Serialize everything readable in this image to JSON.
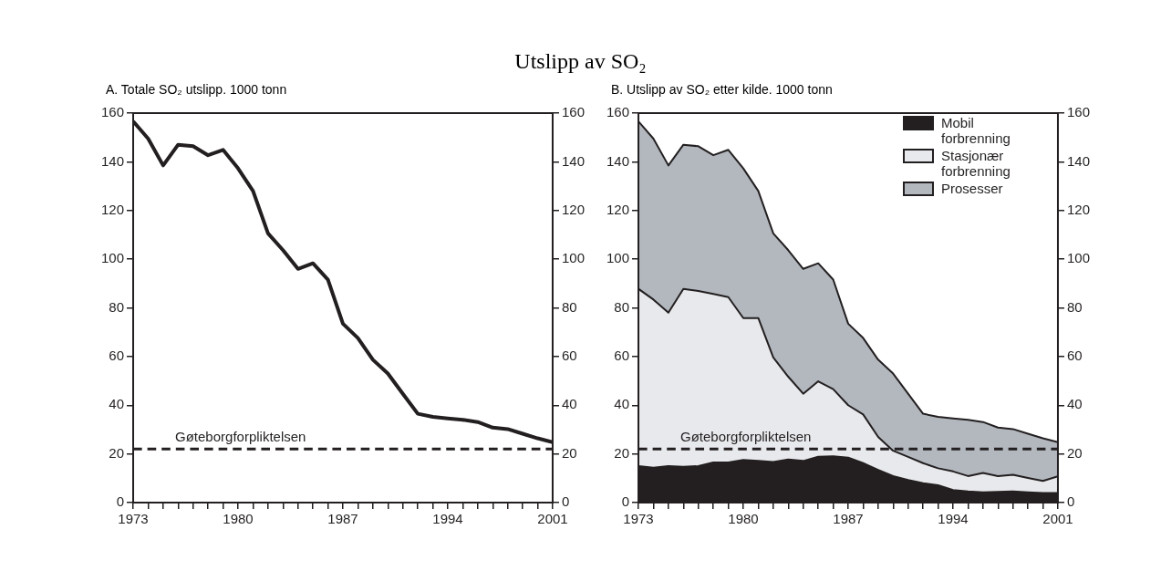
{
  "chart_data": [
    {
      "type": "line",
      "title": "Utslipp av SO₂",
      "subtitle": "A. Totale SO₂ utslipp. 1000 tonn",
      "x": [
        1973,
        1974,
        1975,
        1976,
        1977,
        1978,
        1979,
        1980,
        1981,
        1982,
        1983,
        1984,
        1985,
        1986,
        1987,
        1988,
        1989,
        1990,
        1991,
        1992,
        1993,
        1994,
        1995,
        1996,
        1997,
        1998,
        1999,
        2000,
        2001
      ],
      "series": [
        {
          "color": "#231f20",
          "values": [
            156.6,
            149.5,
            138.5,
            147,
            146.4,
            142.7,
            144.9,
            137.3,
            128,
            110.6,
            103.7,
            96,
            98.3,
            91.6,
            73.5,
            67.6,
            58.7,
            53,
            44.7,
            36.5,
            35.2,
            34.6,
            34,
            33.1,
            30.8,
            30.2,
            28.3,
            26.4,
            24.8
          ]
        }
      ],
      "xlim": [
        1973,
        2001
      ],
      "xticks": [
        1973,
        {
          "value": 1974,
          "label": null
        },
        {
          "value": 1975,
          "label": null
        },
        {
          "value": 1976,
          "label": null
        },
        {
          "value": 1977,
          "label": null
        },
        {
          "value": 1978,
          "label": null
        },
        {
          "value": 1979,
          "label": null
        },
        1980,
        {
          "value": 1981,
          "label": null
        },
        {
          "value": 1982,
          "label": null
        },
        {
          "value": 1983,
          "label": null
        },
        {
          "value": 1984,
          "label": null
        },
        {
          "value": 1985,
          "label": null
        },
        {
          "value": 1986,
          "label": null
        },
        1987,
        {
          "value": 1988,
          "label": null
        },
        {
          "value": 1989,
          "label": null
        },
        {
          "value": 1990,
          "label": null
        },
        {
          "value": 1991,
          "label": null
        },
        {
          "value": 1992,
          "label": null
        },
        {
          "value": 1993,
          "label": null
        },
        1994,
        {
          "value": 1995,
          "label": null
        },
        {
          "value": 1996,
          "label": null
        },
        {
          "value": 1997,
          "label": null
        },
        {
          "value": 1998,
          "label": null
        },
        {
          "value": 1999,
          "label": null
        },
        {
          "value": 2000,
          "label": null
        },
        2001
      ],
      "ylim": [
        0,
        160
      ],
      "yticks": [
        0,
        20,
        40,
        60,
        80,
        100,
        120,
        140,
        160
      ],
      "y2lim": [
        0,
        160
      ],
      "y2ticks": [
        0,
        20,
        40,
        60,
        80,
        100,
        120,
        140,
        160
      ],
      "ref_lines": [
        {
          "axis": "y",
          "value": 22,
          "label": "Gøteborgforpliktelsen",
          "color": "#231f20",
          "line_style": "dashed"
        }
      ],
      "grid": false,
      "legend": false,
      "line_style": "solid",
      "marker": "none"
    },
    {
      "type": "area",
      "subtitle": "B. Utslipp av SO₂ etter kilde. 1000 tonn",
      "stacked": true,
      "x": [
        1973,
        1974,
        1975,
        1976,
        1977,
        1978,
        1979,
        1980,
        1981,
        1982,
        1983,
        1984,
        1985,
        1986,
        1987,
        1988,
        1989,
        1990,
        1991,
        1992,
        1993,
        1994,
        1995,
        1996,
        1997,
        1998,
        1999,
        2000,
        2001
      ],
      "series": [
        {
          "name": "Mobil forbrenning",
          "color": "#231f20",
          "values": [
            15,
            14.3,
            15,
            14.7,
            15,
            16.5,
            16.5,
            17.5,
            17.1,
            16.7,
            17.7,
            17.1,
            18.8,
            19,
            18.5,
            16.2,
            13.4,
            10.9,
            9.3,
            8,
            7.1,
            5.2,
            4.6,
            4.2,
            4.4,
            4.6,
            4.2,
            3.9,
            3.9
          ]
        },
        {
          "name": "Stasjonær forbrenning",
          "color": "#e8e9ec",
          "values": [
            72.8,
            69.1,
            63,
            73.1,
            71.9,
            69.2,
            67.9,
            58.3,
            58.7,
            42.9,
            34,
            27.6,
            31,
            27.6,
            21.5,
            20,
            13.6,
            10.4,
            9.5,
            8.2,
            7,
            7.6,
            6.3,
            8,
            6.5,
            6.8,
            5.9,
            5,
            6.9
          ]
        },
        {
          "name": "Prosesser",
          "color": "#b3b8bf",
          "values": [
            68.8,
            66.1,
            60.5,
            59.2,
            59.5,
            57,
            60.5,
            61.5,
            52.2,
            51,
            52,
            51.3,
            48.5,
            45,
            33.5,
            31.4,
            31.7,
            31.7,
            25.9,
            20.3,
            21.1,
            21.8,
            23.1,
            20.9,
            19.9,
            18.8,
            18.2,
            17.5,
            14
          ]
        }
      ],
      "xlim": [
        1973,
        2001
      ],
      "xticks": [
        1973,
        {
          "value": 1974,
          "label": null
        },
        {
          "value": 1975,
          "label": null
        },
        {
          "value": 1976,
          "label": null
        },
        {
          "value": 1977,
          "label": null
        },
        {
          "value": 1978,
          "label": null
        },
        {
          "value": 1979,
          "label": null
        },
        1980,
        {
          "value": 1981,
          "label": null
        },
        {
          "value": 1982,
          "label": null
        },
        {
          "value": 1983,
          "label": null
        },
        {
          "value": 1984,
          "label": null
        },
        {
          "value": 1985,
          "label": null
        },
        {
          "value": 1986,
          "label": null
        },
        1987,
        {
          "value": 1988,
          "label": null
        },
        {
          "value": 1989,
          "label": null
        },
        {
          "value": 1990,
          "label": null
        },
        {
          "value": 1991,
          "label": null
        },
        {
          "value": 1992,
          "label": null
        },
        {
          "value": 1993,
          "label": null
        },
        1994,
        {
          "value": 1995,
          "label": null
        },
        {
          "value": 1996,
          "label": null
        },
        {
          "value": 1997,
          "label": null
        },
        {
          "value": 1998,
          "label": null
        },
        {
          "value": 1999,
          "label": null
        },
        {
          "value": 2000,
          "label": null
        },
        2001
      ],
      "ylim": [
        0,
        160
      ],
      "yticks": [
        0,
        20,
        40,
        60,
        80,
        100,
        120,
        140,
        160
      ],
      "y2lim": [
        0,
        160
      ],
      "y2ticks": [
        0,
        20,
        40,
        60,
        80,
        100,
        120,
        140,
        160
      ],
      "ref_lines": [
        {
          "axis": "y",
          "value": 22,
          "label": "Gøteborgforpliktelsen",
          "color": "#231f20",
          "line_style": "dashed"
        }
      ],
      "grid": false,
      "legend": "top right"
    }
  ]
}
